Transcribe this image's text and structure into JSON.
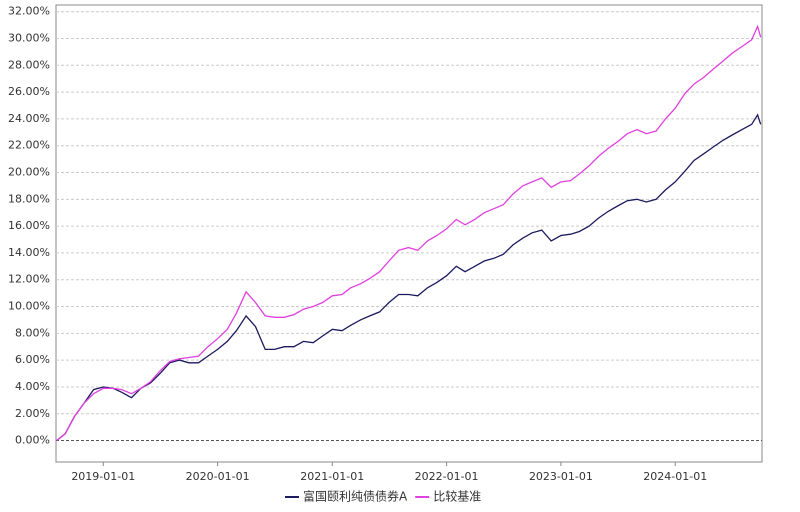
{
  "chart_data": {
    "type": "line",
    "x": [
      "2018-08-05",
      "2018-09-01",
      "2018-10-01",
      "2018-11-01",
      "2018-12-01",
      "2019-01-01",
      "2019-02-01",
      "2019-03-01",
      "2019-04-01",
      "2019-05-01",
      "2019-06-01",
      "2019-07-01",
      "2019-08-01",
      "2019-09-01",
      "2019-10-01",
      "2019-11-01",
      "2019-12-01",
      "2020-01-01",
      "2020-02-01",
      "2020-03-01",
      "2020-04-01",
      "2020-05-01",
      "2020-06-01",
      "2020-07-01",
      "2020-08-01",
      "2020-09-01",
      "2020-10-01",
      "2020-11-01",
      "2020-12-01",
      "2021-01-01",
      "2021-02-01",
      "2021-03-01",
      "2021-04-01",
      "2021-05-01",
      "2021-06-01",
      "2021-07-01",
      "2021-08-01",
      "2021-09-01",
      "2021-10-01",
      "2021-11-01",
      "2021-12-01",
      "2022-01-01",
      "2022-02-01",
      "2022-03-01",
      "2022-04-01",
      "2022-05-01",
      "2022-06-01",
      "2022-07-01",
      "2022-08-01",
      "2022-09-01",
      "2022-10-01",
      "2022-11-01",
      "2022-12-01",
      "2023-01-01",
      "2023-02-01",
      "2023-03-01",
      "2023-04-01",
      "2023-05-01",
      "2023-06-01",
      "2023-07-01",
      "2023-08-01",
      "2023-09-01",
      "2023-10-01",
      "2023-11-01",
      "2023-12-01",
      "2024-01-01",
      "2024-02-01",
      "2024-03-01",
      "2024-04-01",
      "2024-05-01",
      "2024-06-01",
      "2024-07-01",
      "2024-08-01",
      "2024-09-01",
      "2024-09-20",
      "2024-09-30"
    ],
    "series": [
      {
        "name": "富国颐利纯债债券A",
        "color": "#1a1a5e",
        "values": [
          0,
          0.5,
          1.8,
          2.8,
          3.8,
          4.0,
          3.9,
          3.6,
          3.2,
          3.9,
          4.3,
          5.0,
          5.8,
          6.0,
          5.8,
          5.8,
          6.3,
          6.8,
          7.4,
          8.2,
          9.3,
          8.5,
          6.8,
          6.8,
          7.0,
          7.0,
          7.4,
          7.3,
          7.8,
          8.3,
          8.2,
          8.6,
          9.0,
          9.3,
          9.6,
          10.3,
          10.9,
          10.9,
          10.8,
          11.4,
          11.8,
          12.3,
          13.0,
          12.6,
          13.0,
          13.4,
          13.6,
          13.9,
          14.6,
          15.1,
          15.5,
          15.7,
          14.9,
          15.3,
          15.4,
          15.6,
          16.0,
          16.6,
          17.1,
          17.5,
          17.9,
          18.0,
          17.8,
          18.0,
          18.7,
          19.3,
          20.1,
          20.9,
          21.4,
          21.9,
          22.4,
          22.8,
          23.2,
          23.6,
          24.3,
          23.6
        ]
      },
      {
        "name": "比较基准",
        "color": "#e040e0",
        "values": [
          0,
          0.5,
          1.8,
          2.8,
          3.5,
          3.9,
          3.9,
          3.8,
          3.5,
          3.9,
          4.4,
          5.2,
          5.9,
          6.1,
          6.2,
          6.3,
          7.0,
          7.6,
          8.3,
          9.5,
          11.1,
          10.3,
          9.3,
          9.2,
          9.2,
          9.4,
          9.8,
          10.0,
          10.3,
          10.8,
          10.9,
          11.4,
          11.7,
          12.1,
          12.6,
          13.4,
          14.2,
          14.4,
          14.2,
          14.9,
          15.3,
          15.8,
          16.5,
          16.1,
          16.5,
          17.0,
          17.3,
          17.6,
          18.4,
          19.0,
          19.3,
          19.6,
          18.9,
          19.3,
          19.4,
          19.9,
          20.5,
          21.2,
          21.8,
          22.3,
          22.9,
          23.2,
          22.9,
          23.1,
          24.0,
          24.8,
          25.9,
          26.6,
          27.1,
          27.7,
          28.3,
          28.9,
          29.4,
          29.9,
          30.9,
          30.1
        ]
      }
    ],
    "xlim": [
      "2018-08-03",
      "2024-10-04"
    ],
    "xticks": [
      "2019-01-01",
      "2020-01-01",
      "2021-01-01",
      "2022-01-01",
      "2023-01-01",
      "2024-01-01"
    ],
    "ylim": [
      -1.6,
      32.5
    ],
    "yticks": [
      {
        "value": 0,
        "label": "0.00%"
      },
      {
        "value": 2,
        "label": "2.00%"
      },
      {
        "value": 4,
        "label": "4.00%"
      },
      {
        "value": 6,
        "label": "6.00%"
      },
      {
        "value": 8,
        "label": "8.00%"
      },
      {
        "value": 10,
        "label": "10.00%"
      },
      {
        "value": 12,
        "label": "12.00%"
      },
      {
        "value": 14,
        "label": "14.00%"
      },
      {
        "value": 16,
        "label": "16.00%"
      },
      {
        "value": 18,
        "label": "18.00%"
      },
      {
        "value": 20,
        "label": "20.00%"
      },
      {
        "value": 22,
        "label": "22.00%"
      },
      {
        "value": 24,
        "label": "24.00%"
      },
      {
        "value": 26,
        "label": "26.00%"
      },
      {
        "value": 28,
        "label": "28.00%"
      },
      {
        "value": 30,
        "label": "30.00%"
      },
      {
        "value": 32,
        "label": "32.00%"
      }
    ],
    "grid": true,
    "legend": "bottom"
  }
}
